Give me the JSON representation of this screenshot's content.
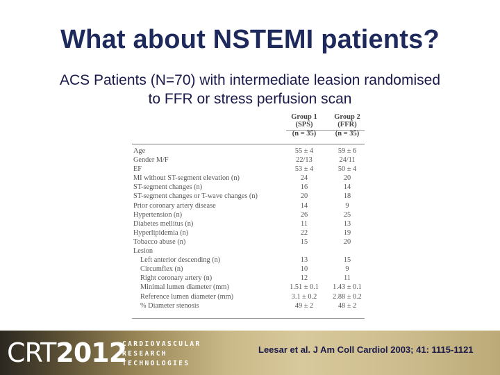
{
  "slide": {
    "title": "What about NSTEMI patients?",
    "subtitle_line1": "ACS Patients (N=70) with intermediate leasion randomised",
    "subtitle_line2": "to FFR or stress perfusion scan"
  },
  "table": {
    "group1": {
      "line1": "Group 1",
      "line2": "(SPS)",
      "line3": "(n = 35)"
    },
    "group2": {
      "line1": "Group 2",
      "line2": "(FFR)",
      "line3": "(n = 35)"
    },
    "rows": [
      {
        "label": "Age",
        "g1": "55 ± 4",
        "g2": "59 ± 6",
        "indent": false
      },
      {
        "label": "Gender M/F",
        "g1": "22/13",
        "g2": "24/11",
        "indent": false
      },
      {
        "label": "EF",
        "g1": "53 ± 4",
        "g2": "50 ± 4",
        "indent": false
      },
      {
        "label": "MI without ST-segment elevation (n)",
        "g1": "24",
        "g2": "20",
        "indent": false
      },
      {
        "label": "ST-segment changes (n)",
        "g1": "16",
        "g2": "14",
        "indent": false
      },
      {
        "label": "ST-segment changes or T-wave changes (n)",
        "g1": "20",
        "g2": "18",
        "indent": false
      },
      {
        "label": "Prior coronary artery disease",
        "g1": "14",
        "g2": "9",
        "indent": false
      },
      {
        "label": "Hypertension (n)",
        "g1": "26",
        "g2": "25",
        "indent": false
      },
      {
        "label": "Diabetes mellitus (n)",
        "g1": "11",
        "g2": "13",
        "indent": false
      },
      {
        "label": "Hyperlipidemia (n)",
        "g1": "22",
        "g2": "19",
        "indent": false
      },
      {
        "label": "Tobacco abuse (n)",
        "g1": "15",
        "g2": "20",
        "indent": false
      },
      {
        "label": "Lesion",
        "g1": "",
        "g2": "",
        "indent": false
      },
      {
        "label": "Left anterior descending (n)",
        "g1": "13",
        "g2": "15",
        "indent": true
      },
      {
        "label": "Circumflex (n)",
        "g1": "10",
        "g2": "9",
        "indent": true
      },
      {
        "label": "Right coronary artery (n)",
        "g1": "12",
        "g2": "11",
        "indent": true
      },
      {
        "label": "Minimal lumen diameter (mm)",
        "g1": "1.51 ± 0.1",
        "g2": "1.43 ± 0.1",
        "indent": true
      },
      {
        "label": "Reference lumen diameter (mm)",
        "g1": "3.1 ± 0.2",
        "g2": "2.88 ± 0.2",
        "indent": true
      },
      {
        "label": "% Diameter stenosis",
        "g1": "49 ± 2",
        "g2": "48 ± 2",
        "indent": true
      }
    ]
  },
  "footer": {
    "logo_crt": "CRT",
    "logo_year": "2012",
    "logo_line1": "CARDIOVASCULAR",
    "logo_line2": "RESEARCH",
    "logo_line3": "TECHNOLOGIES",
    "citation": "Leesar et al. J Am Coll Cardiol 2003; 41: 1115-1121"
  }
}
